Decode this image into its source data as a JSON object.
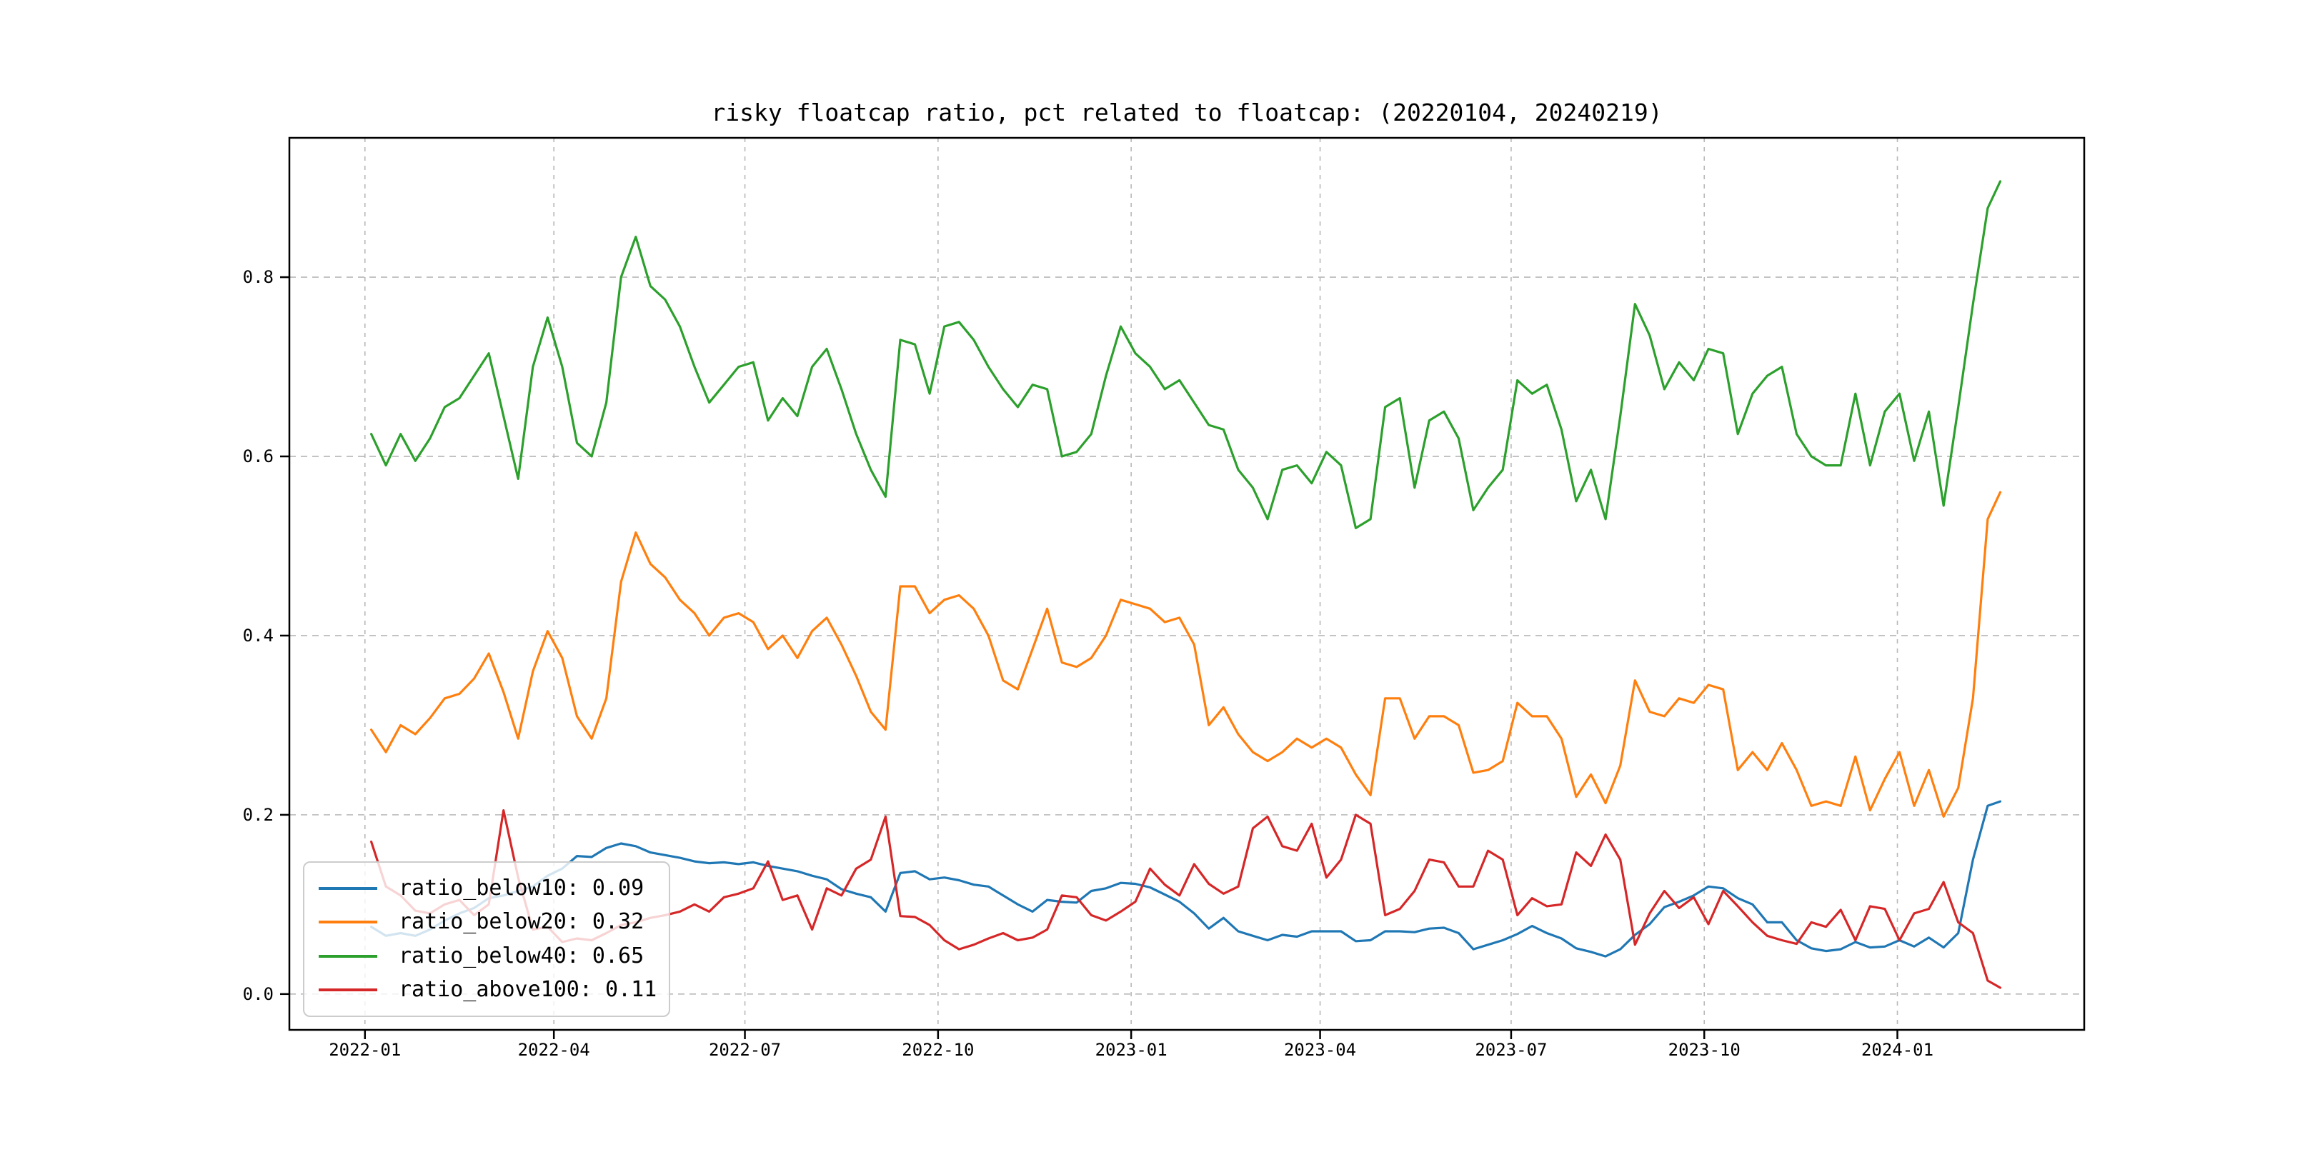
{
  "chart_data": {
    "type": "line",
    "title": "risky floatcap ratio, pct related to floatcap: (20220104, 20240219)",
    "xlabel": "",
    "ylabel": "",
    "grid": "dashed",
    "legend_position": "lower left",
    "date_range": [
      "20220104",
      "20240219"
    ],
    "x_axis_epoch": "2022-01-01",
    "x_tick_days": [
      0,
      90,
      181,
      273,
      365,
      455,
      546,
      638,
      730
    ],
    "x_tick_labels": [
      "2022-01",
      "2022-04",
      "2022-07",
      "2022-10",
      "2023-01",
      "2023-04",
      "2023-07",
      "2023-10",
      "2024-01"
    ],
    "y_ticks": [
      0.0,
      0.2,
      0.4,
      0.6,
      0.8
    ],
    "y_tick_labels": [
      "0.0",
      "0.2",
      "0.4",
      "0.6",
      "0.8"
    ],
    "xlim_days": [
      -36,
      819
    ],
    "ylim": [
      -0.04,
      0.9555
    ],
    "x_days": [
      3,
      10,
      17,
      24,
      31,
      38,
      45,
      52,
      59,
      66,
      73,
      80,
      87,
      94,
      101,
      108,
      115,
      122,
      129,
      136,
      143,
      150,
      157,
      164,
      171,
      178,
      185,
      192,
      199,
      206,
      213,
      220,
      227,
      234,
      241,
      248,
      255,
      262,
      269,
      276,
      283,
      290,
      297,
      304,
      311,
      318,
      325,
      332,
      339,
      346,
      353,
      360,
      367,
      374,
      381,
      388,
      395,
      402,
      409,
      416,
      423,
      430,
      437,
      444,
      451,
      458,
      465,
      472,
      479,
      486,
      493,
      500,
      507,
      514,
      521,
      528,
      535,
      542,
      549,
      556,
      563,
      570,
      577,
      584,
      591,
      598,
      605,
      612,
      619,
      626,
      633,
      640,
      647,
      654,
      661,
      668,
      675,
      682,
      689,
      696,
      703,
      710,
      717,
      724,
      731,
      738,
      745,
      752,
      759,
      766,
      773,
      779
    ],
    "series": [
      {
        "name": "ratio_below10",
        "legend_label": "ratio_below10: 0.09",
        "color": "#1f77b4",
        "values": [
          0.075,
          0.065,
          0.068,
          0.065,
          0.072,
          0.082,
          0.09,
          0.096,
          0.107,
          0.11,
          0.115,
          0.12,
          0.132,
          0.14,
          0.154,
          0.153,
          0.163,
          0.168,
          0.165,
          0.158,
          0.155,
          0.152,
          0.148,
          0.146,
          0.147,
          0.145,
          0.147,
          0.143,
          0.14,
          0.137,
          0.132,
          0.128,
          0.117,
          0.112,
          0.108,
          0.092,
          0.135,
          0.137,
          0.128,
          0.13,
          0.127,
          0.122,
          0.12,
          0.11,
          0.1,
          0.092,
          0.105,
          0.103,
          0.102,
          0.115,
          0.118,
          0.124,
          0.123,
          0.119,
          0.111,
          0.103,
          0.09,
          0.073,
          0.085,
          0.07,
          0.065,
          0.06,
          0.066,
          0.064,
          0.07,
          0.07,
          0.07,
          0.059,
          0.06,
          0.07,
          0.07,
          0.069,
          0.073,
          0.074,
          0.068,
          0.05,
          0.055,
          0.06,
          0.067,
          0.076,
          0.068,
          0.062,
          0.051,
          0.047,
          0.042,
          0.05,
          0.066,
          0.078,
          0.097,
          0.103,
          0.11,
          0.12,
          0.118,
          0.107,
          0.1,
          0.08,
          0.08,
          0.06,
          0.051,
          0.048,
          0.05,
          0.058,
          0.052,
          0.053,
          0.06,
          0.053,
          0.063,
          0.052,
          0.068,
          0.15,
          0.21,
          0.215
        ]
      },
      {
        "name": "ratio_below20",
        "legend_label": "ratio_below20: 0.32",
        "color": "#ff7f0e",
        "values": [
          0.295,
          0.27,
          0.3,
          0.29,
          0.308,
          0.33,
          0.335,
          0.352,
          0.38,
          0.337,
          0.285,
          0.36,
          0.405,
          0.375,
          0.31,
          0.285,
          0.33,
          0.46,
          0.515,
          0.48,
          0.465,
          0.44,
          0.425,
          0.4,
          0.42,
          0.425,
          0.415,
          0.385,
          0.4,
          0.375,
          0.405,
          0.42,
          0.39,
          0.355,
          0.315,
          0.295,
          0.455,
          0.455,
          0.425,
          0.44,
          0.445,
          0.43,
          0.4,
          0.35,
          0.34,
          0.385,
          0.43,
          0.37,
          0.365,
          0.375,
          0.4,
          0.44,
          0.435,
          0.43,
          0.415,
          0.42,
          0.39,
          0.3,
          0.32,
          0.29,
          0.27,
          0.26,
          0.27,
          0.285,
          0.275,
          0.285,
          0.275,
          0.245,
          0.222,
          0.33,
          0.33,
          0.285,
          0.31,
          0.31,
          0.3,
          0.247,
          0.25,
          0.26,
          0.325,
          0.31,
          0.31,
          0.285,
          0.22,
          0.245,
          0.213,
          0.255,
          0.35,
          0.315,
          0.31,
          0.33,
          0.325,
          0.345,
          0.34,
          0.25,
          0.27,
          0.25,
          0.28,
          0.25,
          0.21,
          0.215,
          0.21,
          0.265,
          0.205,
          0.24,
          0.27,
          0.21,
          0.25,
          0.198,
          0.23,
          0.33,
          0.53,
          0.56
        ]
      },
      {
        "name": "ratio_below40",
        "legend_label": "ratio_below40: 0.65",
        "color": "#2ca02c",
        "values": [
          0.625,
          0.59,
          0.625,
          0.595,
          0.62,
          0.655,
          0.665,
          0.69,
          0.715,
          0.645,
          0.575,
          0.7,
          0.755,
          0.7,
          0.615,
          0.6,
          0.66,
          0.8,
          0.845,
          0.79,
          0.775,
          0.745,
          0.7,
          0.66,
          0.68,
          0.7,
          0.705,
          0.64,
          0.665,
          0.645,
          0.7,
          0.72,
          0.675,
          0.625,
          0.585,
          0.555,
          0.73,
          0.725,
          0.67,
          0.745,
          0.75,
          0.73,
          0.7,
          0.675,
          0.655,
          0.68,
          0.675,
          0.6,
          0.605,
          0.625,
          0.69,
          0.745,
          0.715,
          0.7,
          0.675,
          0.685,
          0.66,
          0.635,
          0.63,
          0.585,
          0.565,
          0.53,
          0.585,
          0.59,
          0.57,
          0.605,
          0.59,
          0.52,
          0.53,
          0.655,
          0.665,
          0.565,
          0.64,
          0.65,
          0.62,
          0.54,
          0.565,
          0.585,
          0.685,
          0.67,
          0.68,
          0.63,
          0.55,
          0.585,
          0.53,
          0.645,
          0.77,
          0.735,
          0.675,
          0.705,
          0.685,
          0.72,
          0.715,
          0.625,
          0.67,
          0.69,
          0.7,
          0.625,
          0.6,
          0.59,
          0.59,
          0.67,
          0.59,
          0.65,
          0.67,
          0.595,
          0.65,
          0.545,
          0.655,
          0.77,
          0.877,
          0.907
        ]
      },
      {
        "name": "ratio_above100",
        "legend_label": "ratio_above100: 0.11",
        "color": "#d62728",
        "values": [
          0.17,
          0.12,
          0.11,
          0.093,
          0.09,
          0.1,
          0.105,
          0.088,
          0.1,
          0.205,
          0.13,
          0.072,
          0.075,
          0.058,
          0.062,
          0.06,
          0.068,
          0.077,
          0.08,
          0.085,
          0.088,
          0.092,
          0.1,
          0.092,
          0.108,
          0.112,
          0.118,
          0.148,
          0.105,
          0.11,
          0.072,
          0.118,
          0.11,
          0.14,
          0.15,
          0.198,
          0.087,
          0.086,
          0.077,
          0.06,
          0.05,
          0.055,
          0.062,
          0.068,
          0.06,
          0.063,
          0.072,
          0.11,
          0.108,
          0.088,
          0.082,
          0.092,
          0.103,
          0.14,
          0.122,
          0.11,
          0.145,
          0.123,
          0.112,
          0.12,
          0.185,
          0.198,
          0.165,
          0.16,
          0.19,
          0.13,
          0.15,
          0.2,
          0.19,
          0.088,
          0.095,
          0.115,
          0.15,
          0.147,
          0.12,
          0.12,
          0.16,
          0.15,
          0.088,
          0.107,
          0.098,
          0.1,
          0.158,
          0.143,
          0.178,
          0.15,
          0.055,
          0.09,
          0.115,
          0.096,
          0.108,
          0.078,
          0.115,
          0.098,
          0.08,
          0.065,
          0.06,
          0.056,
          0.08,
          0.075,
          0.094,
          0.06,
          0.098,
          0.095,
          0.06,
          0.09,
          0.095,
          0.125,
          0.08,
          0.068,
          0.015,
          0.007
        ]
      }
    ],
    "style": {
      "grid_color": "#b8b8b8",
      "spine_color": "#000000",
      "background": "#ffffff",
      "line_width": 3.2
    }
  }
}
